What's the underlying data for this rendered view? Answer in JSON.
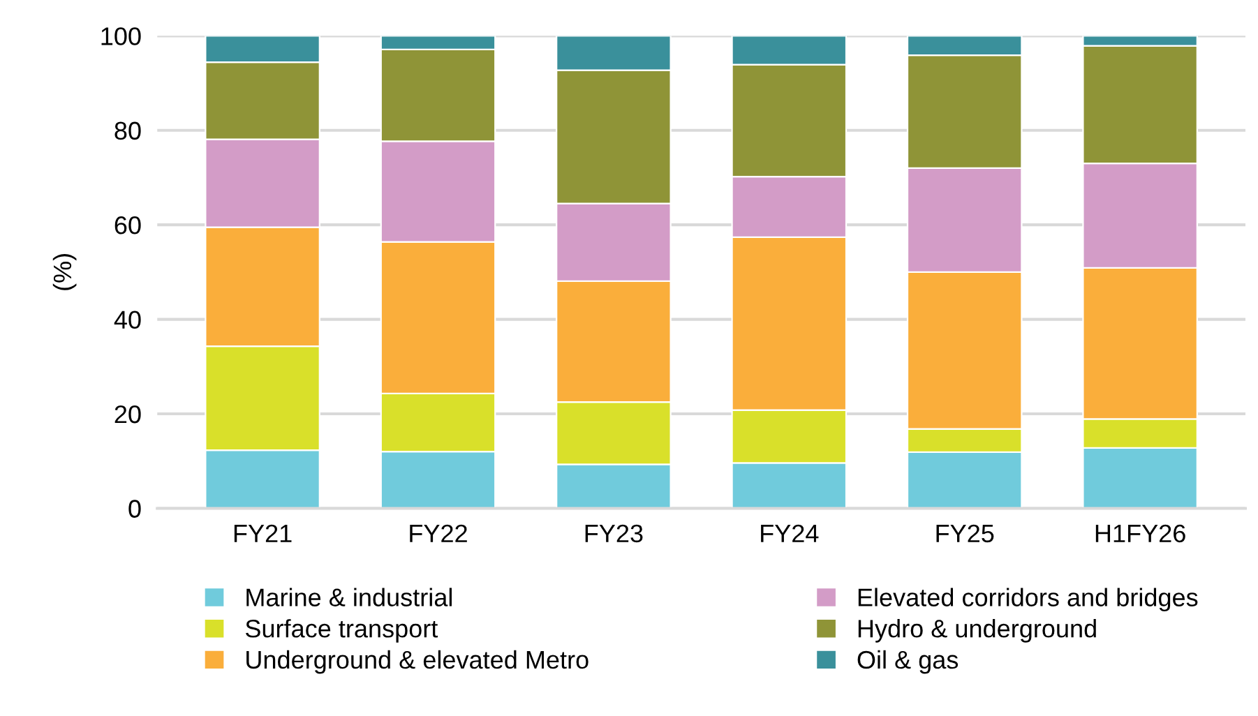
{
  "chart_data": {
    "type": "bar",
    "stacked": true,
    "ylabel": "(%)",
    "categories": [
      "FY21",
      "FY22",
      "FY23",
      "FY24",
      "FY25",
      "H1FY26"
    ],
    "series": [
      {
        "name": "Marine & industrial",
        "color": "#70cbdc",
        "values": [
          12.3,
          12.0,
          9.3,
          9.6,
          11.9,
          12.8
        ]
      },
      {
        "name": "Surface transport",
        "color": "#d9e02a",
        "values": [
          22.0,
          12.3,
          13.2,
          11.2,
          4.9,
          6.1
        ]
      },
      {
        "name": "Underground & elevated Metro",
        "color": "#faae3b",
        "values": [
          25.2,
          32.1,
          25.6,
          36.6,
          33.2,
          32.0
        ]
      },
      {
        "name": "Elevated corridors and bridges",
        "color": "#d39cc7",
        "values": [
          18.6,
          21.3,
          16.4,
          12.8,
          22.0,
          22.1
        ]
      },
      {
        "name": "Hydro & underground",
        "color": "#8f9437",
        "values": [
          16.3,
          19.4,
          28.2,
          23.7,
          23.9,
          24.9
        ]
      },
      {
        "name": "Oil & gas",
        "color": "#3a909b",
        "values": [
          5.6,
          2.9,
          7.3,
          6.1,
          4.1,
          2.1
        ]
      }
    ],
    "ylim": [
      0,
      100
    ],
    "yticks": [
      0,
      20,
      40,
      60,
      80,
      100
    ],
    "grid": "y",
    "legend": "bottom"
  }
}
